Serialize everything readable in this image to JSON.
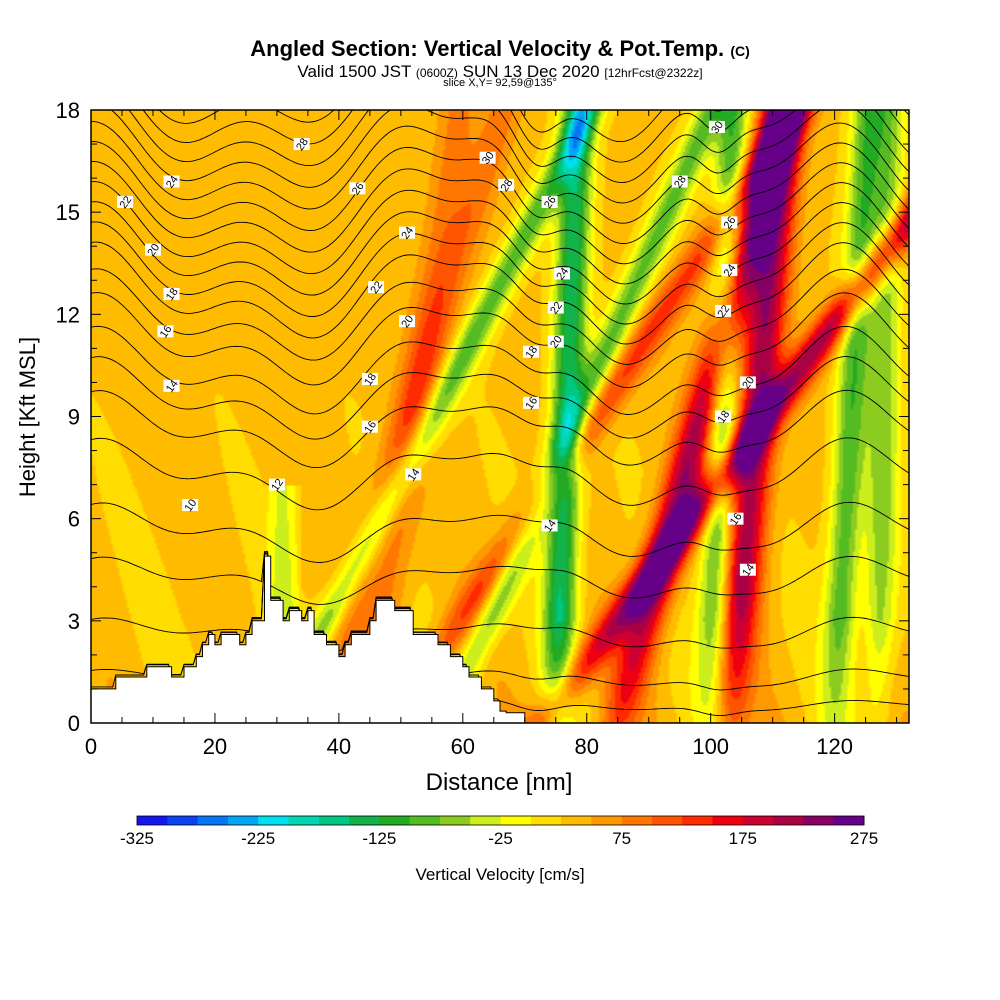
{
  "header": {
    "title": "Angled Section: Vertical Velocity & Pot.Temp.",
    "copyright": "(C)",
    "valid_a": "Valid 1500 JST",
    "valid_zulu": "(0600Z)",
    "valid_b": "SUN 13 Dec 2020",
    "forecast": "[12hrFcst@2322z]",
    "slice": "slice X,Y= 92,59@135°"
  },
  "chart_data": {
    "type": "heatmap",
    "title": "Angled Section: Vertical Velocity & Pot.Temp.",
    "xlabel": "Distance [nm]",
    "ylabel": "Height [Kft MSL]",
    "xlim": [
      0,
      132
    ],
    "ylim": [
      0,
      18
    ],
    "xticks": [
      0,
      20,
      40,
      60,
      80,
      100,
      120
    ],
    "yticks": [
      0,
      3,
      6,
      9,
      12,
      15,
      18
    ],
    "fill_variable": "Vertical Velocity [cm/s]",
    "colorbar": {
      "label": "Vertical Velocity [cm/s]",
      "min": -325,
      "max": 275,
      "step": 25,
      "tick_labels": [
        "-325",
        "-225",
        "-125",
        "-25",
        "75",
        "175",
        "275"
      ],
      "colors": [
        "#1515ee",
        "#0a44f0",
        "#0575f5",
        "#00a6f5",
        "#00e0ee",
        "#00d7b2",
        "#00c882",
        "#12b34a",
        "#22aa22",
        "#55bb22",
        "#8ccc20",
        "#ccee1c",
        "#ffff00",
        "#ffdd00",
        "#ffbb00",
        "#ff9900",
        "#ff7700",
        "#ff5500",
        "#ff2a00",
        "#ee0011",
        "#cc0033",
        "#aa0044",
        "#880066",
        "#660088"
      ]
    },
    "updraft_bands_nm": [
      {
        "x0": 49,
        "slope": 3.6,
        "strength": 105
      },
      {
        "x0": 73,
        "slope": 4.0,
        "strength": 185
      },
      {
        "x0": 85,
        "slope": 1.5,
        "strength": 190
      },
      {
        "x0": 103,
        "slope": 0.5,
        "strength": 190
      },
      {
        "x0": 36,
        "slope": 1.7,
        "strength": 60
      },
      {
        "x0": 45,
        "slope": 0.8,
        "strength": 55
      }
    ],
    "downdraft_bands_nm": [
      {
        "x0": 30,
        "slope": 2.8,
        "strength": 120
      },
      {
        "x0": 57,
        "slope": 2.4,
        "strength": 115
      },
      {
        "x0": 75,
        "slope": 0.2,
        "strength": 175
      },
      {
        "x0": 100,
        "slope": 0.2,
        "strength": 130
      },
      {
        "x0": 120,
        "slope": 0.3,
        "strength": 125
      },
      {
        "x0": 127,
        "slope": 0.1,
        "strength": 95
      }
    ],
    "terrain_kft": {
      "x": [
        0,
        4,
        4,
        9,
        9,
        13,
        13,
        15,
        15,
        17,
        17,
        18,
        18,
        19,
        19,
        20,
        20,
        21,
        21,
        24,
        24,
        25,
        25,
        26,
        26,
        28,
        28,
        29,
        29,
        31,
        31,
        32,
        32,
        34,
        34,
        35,
        35,
        36,
        36,
        38,
        38,
        40,
        40,
        41,
        41,
        42,
        42,
        45,
        45,
        46,
        46,
        49,
        49,
        52,
        52,
        56,
        56,
        58,
        58,
        60,
        60,
        61,
        61,
        63,
        63,
        65,
        65,
        66,
        66,
        67,
        67,
        68,
        68,
        70,
        70,
        72,
        72,
        73,
        73,
        132
      ],
      "y": [
        1.0,
        1.0,
        1.35,
        1.35,
        1.65,
        1.65,
        1.35,
        1.35,
        1.65,
        1.65,
        1.95,
        1.95,
        2.3,
        2.3,
        2.6,
        2.6,
        2.3,
        2.3,
        2.6,
        2.6,
        2.3,
        2.3,
        2.6,
        2.6,
        3.0,
        3.0,
        4.9,
        4.9,
        3.6,
        3.6,
        3.0,
        3.0,
        3.3,
        3.3,
        3.0,
        3.0,
        3.3,
        3.3,
        2.6,
        2.6,
        2.3,
        2.3,
        1.95,
        1.95,
        2.3,
        2.3,
        2.6,
        2.6,
        3.0,
        3.0,
        3.6,
        3.6,
        3.3,
        3.3,
        2.6,
        2.6,
        2.3,
        2.3,
        1.95,
        1.95,
        1.65,
        1.65,
        1.35,
        1.35,
        1.0,
        1.0,
        0.65,
        0.65,
        0.35,
        0.35,
        0.3,
        0.3,
        0.3,
        0.3,
        0,
        0,
        0,
        0,
        0,
        0
      ]
    },
    "theta_contours": [
      {
        "level": 9,
        "base": 0.5,
        "wave": 0.2
      },
      {
        "level": 10,
        "base": 1.3,
        "wave": 0.35
      },
      {
        "level": 11,
        "base": 2.6,
        "wave": 0.6
      },
      {
        "level": 12,
        "base": 4.2,
        "wave": 0.8
      },
      {
        "level": 13,
        "base": 5.6,
        "wave": 1.0
      },
      {
        "level": 14,
        "base": 7.3,
        "wave": 1.2
      },
      {
        "level": 15,
        "base": 8.6,
        "wave": 1.3
      },
      {
        "level": 16,
        "base": 9.5,
        "wave": 1.4
      },
      {
        "level": 17,
        "base": 10.3,
        "wave": 1.5
      },
      {
        "level": 18,
        "base": 11.2,
        "wave": 1.6
      },
      {
        "level": 19,
        "base": 11.9,
        "wave": 1.6
      },
      {
        "level": 20,
        "base": 12.6,
        "wave": 1.7
      },
      {
        "level": 21,
        "base": 13.2,
        "wave": 1.7
      },
      {
        "level": 22,
        "base": 13.8,
        "wave": 1.7
      },
      {
        "level": 23,
        "base": 14.4,
        "wave": 1.7
      },
      {
        "level": 24,
        "base": 15.0,
        "wave": 1.7
      },
      {
        "level": 25,
        "base": 15.6,
        "wave": 1.7
      },
      {
        "level": 26,
        "base": 16.2,
        "wave": 1.7
      },
      {
        "level": 27,
        "base": 16.8,
        "wave": 1.7
      },
      {
        "level": 28,
        "base": 17.4,
        "wave": 1.7
      },
      {
        "level": 29,
        "base": 18.0,
        "wave": 1.7
      },
      {
        "level": 30,
        "base": 18.6,
        "wave": 1.7
      }
    ],
    "contour_labels": [
      {
        "text": "28",
        "x": 34,
        "y": 17.0
      },
      {
        "text": "26",
        "x": 43,
        "y": 15.7
      },
      {
        "text": "24",
        "x": 13,
        "y": 15.9
      },
      {
        "text": "22",
        "x": 5.5,
        "y": 15.3
      },
      {
        "text": "20",
        "x": 10,
        "y": 13.9
      },
      {
        "text": "18",
        "x": 13,
        "y": 12.6
      },
      {
        "text": "16",
        "x": 12,
        "y": 11.5
      },
      {
        "text": "14",
        "x": 13,
        "y": 9.9
      },
      {
        "text": "10",
        "x": 16,
        "y": 6.4
      },
      {
        "text": "12",
        "x": 30,
        "y": 7.0
      },
      {
        "text": "24",
        "x": 51,
        "y": 14.4
      },
      {
        "text": "22",
        "x": 46,
        "y": 12.8
      },
      {
        "text": "20",
        "x": 51,
        "y": 11.8
      },
      {
        "text": "18",
        "x": 45,
        "y": 10.1
      },
      {
        "text": "16",
        "x": 45,
        "y": 8.7
      },
      {
        "text": "14",
        "x": 52,
        "y": 7.3
      },
      {
        "text": "30",
        "x": 64,
        "y": 16.6
      },
      {
        "text": "28",
        "x": 67,
        "y": 15.8
      },
      {
        "text": "26",
        "x": 74,
        "y": 15.3
      },
      {
        "text": "24",
        "x": 76,
        "y": 13.2
      },
      {
        "text": "22",
        "x": 75,
        "y": 12.2
      },
      {
        "text": "20",
        "x": 75,
        "y": 11.2
      },
      {
        "text": "18",
        "x": 71,
        "y": 10.9
      },
      {
        "text": "16",
        "x": 71,
        "y": 9.4
      },
      {
        "text": "14",
        "x": 74,
        "y": 5.8
      },
      {
        "text": "30",
        "x": 101,
        "y": 17.5
      },
      {
        "text": "28",
        "x": 95,
        "y": 15.9
      },
      {
        "text": "26",
        "x": 103,
        "y": 14.7
      },
      {
        "text": "24",
        "x": 103,
        "y": 13.3
      },
      {
        "text": "22",
        "x": 102,
        "y": 12.1
      },
      {
        "text": "20",
        "x": 106,
        "y": 10.0
      },
      {
        "text": "18",
        "x": 102,
        "y": 9.0
      },
      {
        "text": "16",
        "x": 104,
        "y": 6.0
      },
      {
        "text": "14",
        "x": 106,
        "y": 4.5
      }
    ]
  }
}
